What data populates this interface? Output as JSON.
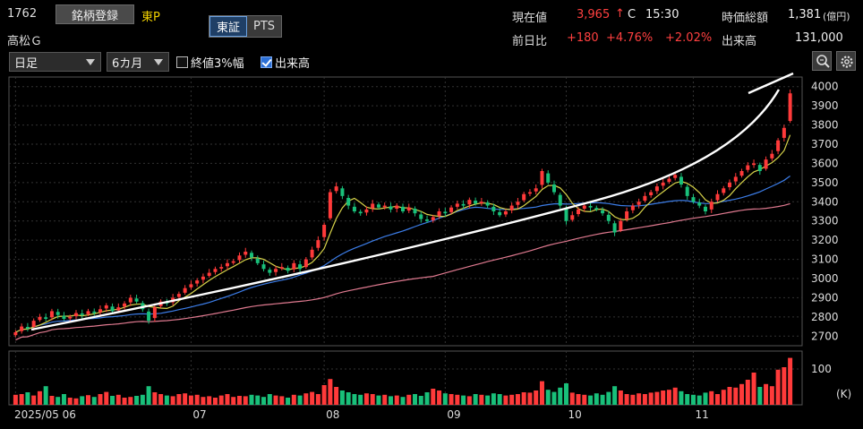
{
  "header": {
    "code": "1762",
    "name": "高松Ｇ",
    "register_label": "銘柄登録",
    "market": "東P",
    "exchange_tabs": [
      {
        "label": "東証",
        "active": true
      },
      {
        "label": "PTS",
        "active": false
      }
    ]
  },
  "quote": {
    "price_label": "現在値",
    "price": "3,965",
    "arrow": "↑",
    "flag": "C",
    "time": "15:30",
    "market_cap_label": "時価総額",
    "market_cap": "1,381",
    "market_cap_unit": "(億円)",
    "change_label": "前日比",
    "change": "+180",
    "change_pct": "+4.76%",
    "change_pct2": "+2.02%",
    "volume_label": "出来高",
    "volume": "131,000"
  },
  "controls": {
    "period_select": "日足",
    "range_select": "6カ月",
    "close_3pct_label": "終値3%幅",
    "close_3pct_checked": false,
    "volume_label": "出来高",
    "volume_checked": true,
    "zoom_icon": "zoom-icon",
    "settings_icon": "gear-icon"
  },
  "colors": {
    "up": "#ff3a3a",
    "down": "#19c07a",
    "ma_short": "#d8d44a",
    "ma_mid": "#3c7de8",
    "ma_long": "#e07a90",
    "trend": "#ffffff"
  },
  "chart_data": {
    "type": "candlestick",
    "price_axis": {
      "min": 2650,
      "max": 4050,
      "ticks": [
        2700,
        2800,
        2900,
        3000,
        3100,
        3200,
        3300,
        3400,
        3500,
        3600,
        3700,
        3800,
        3900,
        4000
      ]
    },
    "volume_axis": {
      "ticks": [
        100
      ],
      "unit": "(K)"
    },
    "x_labels": [
      {
        "label": "2025/05 06",
        "index": 0
      },
      {
        "label": "07",
        "index": 29
      },
      {
        "label": "08",
        "index": 51
      },
      {
        "label": "09",
        "index": 71
      },
      {
        "label": "10",
        "index": 91
      },
      {
        "label": "11",
        "index": 112
      }
    ],
    "closes": [
      2720,
      2750,
      2740,
      2780,
      2800,
      2790,
      2830,
      2810,
      2790,
      2800,
      2820,
      2810,
      2830,
      2820,
      2840,
      2860,
      2830,
      2850,
      2870,
      2900,
      2880,
      2840,
      2780,
      2850,
      2880,
      2870,
      2900,
      2920,
      2950,
      2970,
      2990,
      3010,
      3030,
      3050,
      3060,
      3080,
      3090,
      3120,
      3140,
      3110,
      3080,
      3050,
      3030,
      3050,
      3060,
      3040,
      3080,
      3050,
      3100,
      3150,
      3200,
      3280,
      3450,
      3480,
      3430,
      3380,
      3350,
      3340,
      3360,
      3390,
      3370,
      3380,
      3360,
      3380,
      3350,
      3370,
      3340,
      3310,
      3300,
      3320,
      3350,
      3340,
      3370,
      3390,
      3380,
      3410,
      3390,
      3400,
      3380,
      3350,
      3330,
      3350,
      3380,
      3400,
      3440,
      3450,
      3470,
      3560,
      3500,
      3450,
      3380,
      3300,
      3330,
      3360,
      3380,
      3370,
      3360,
      3340,
      3300,
      3240,
      3300,
      3350,
      3380,
      3400,
      3430,
      3450,
      3480,
      3500,
      3520,
      3540,
      3490,
      3430,
      3400,
      3380,
      3350,
      3400,
      3440,
      3470,
      3500,
      3530,
      3560,
      3590,
      3600,
      3560,
      3620,
      3650,
      3720,
      3785,
      3965
    ],
    "volumes": [
      28,
      30,
      35,
      26,
      38,
      52,
      25,
      22,
      30,
      20,
      18,
      24,
      27,
      22,
      30,
      36,
      25,
      28,
      20,
      22,
      25,
      28,
      52,
      35,
      30,
      26,
      24,
      30,
      32,
      26,
      28,
      22,
      24,
      20,
      26,
      30,
      22,
      25,
      24,
      28,
      26,
      22,
      30,
      26,
      24,
      20,
      28,
      26,
      32,
      36,
      30,
      55,
      72,
      50,
      40,
      35,
      30,
      28,
      32,
      30,
      26,
      28,
      24,
      26,
      22,
      28,
      30,
      25,
      35,
      45,
      40,
      32,
      30,
      28,
      26,
      24,
      30,
      28,
      26,
      32,
      30,
      26,
      28,
      30,
      35,
      34,
      40,
      66,
      42,
      36,
      48,
      60,
      34,
      30,
      28,
      26,
      32,
      28,
      36,
      52,
      40,
      30,
      28,
      32,
      30,
      34,
      36,
      40,
      42,
      48,
      38,
      30,
      28,
      26,
      34,
      38,
      30,
      42,
      50,
      48,
      58,
      70,
      90,
      50,
      58,
      52,
      98,
      105,
      131
    ]
  }
}
